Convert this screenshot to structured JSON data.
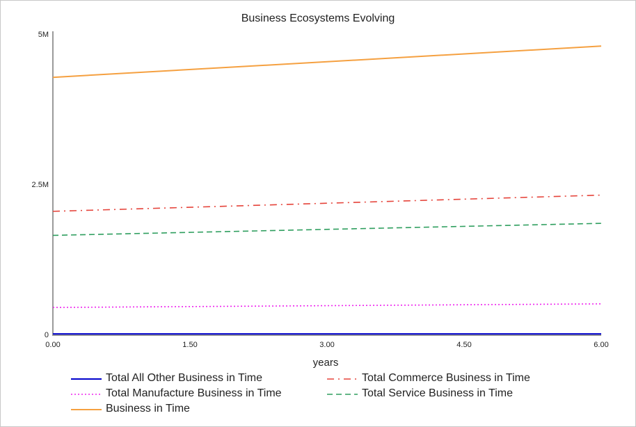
{
  "chart_data": {
    "type": "line",
    "title": "Business Ecosystems Evolving",
    "xlabel": "years",
    "ylabel": "",
    "xlim": [
      0,
      6
    ],
    "ylim": [
      0,
      5000000
    ],
    "x_ticks": [
      {
        "value": 0,
        "label": "0.00"
      },
      {
        "value": 1.5,
        "label": "1.50"
      },
      {
        "value": 3,
        "label": "3.00"
      },
      {
        "value": 4.5,
        "label": "4.50"
      },
      {
        "value": 6,
        "label": "6.00"
      }
    ],
    "y_ticks": [
      {
        "value": 0,
        "label": "0"
      },
      {
        "value": 2500000,
        "label": "2.5M"
      },
      {
        "value": 5000000,
        "label": "5M"
      }
    ],
    "grid": false,
    "legend_position": "bottom",
    "x": [
      0,
      6
    ],
    "series": [
      {
        "name": "Total All Other Business in Time",
        "color": "#0000cc",
        "style": "solid",
        "values": [
          10000,
          10000
        ]
      },
      {
        "name": "Total Commerce Business in Time",
        "color": "#e5433a",
        "style": "dashdot",
        "values": [
          2050000,
          2320000
        ]
      },
      {
        "name": "Total Manufacture Business in Time",
        "color": "#ee22ee",
        "style": "dotted",
        "values": [
          450000,
          510000
        ]
      },
      {
        "name": "Total Service Business in Time",
        "color": "#2e9e5e",
        "style": "dashed",
        "values": [
          1650000,
          1850000
        ]
      },
      {
        "name": "Business in Time",
        "color": "#f5a040",
        "style": "solid",
        "values": [
          4280000,
          4800000
        ]
      }
    ]
  }
}
